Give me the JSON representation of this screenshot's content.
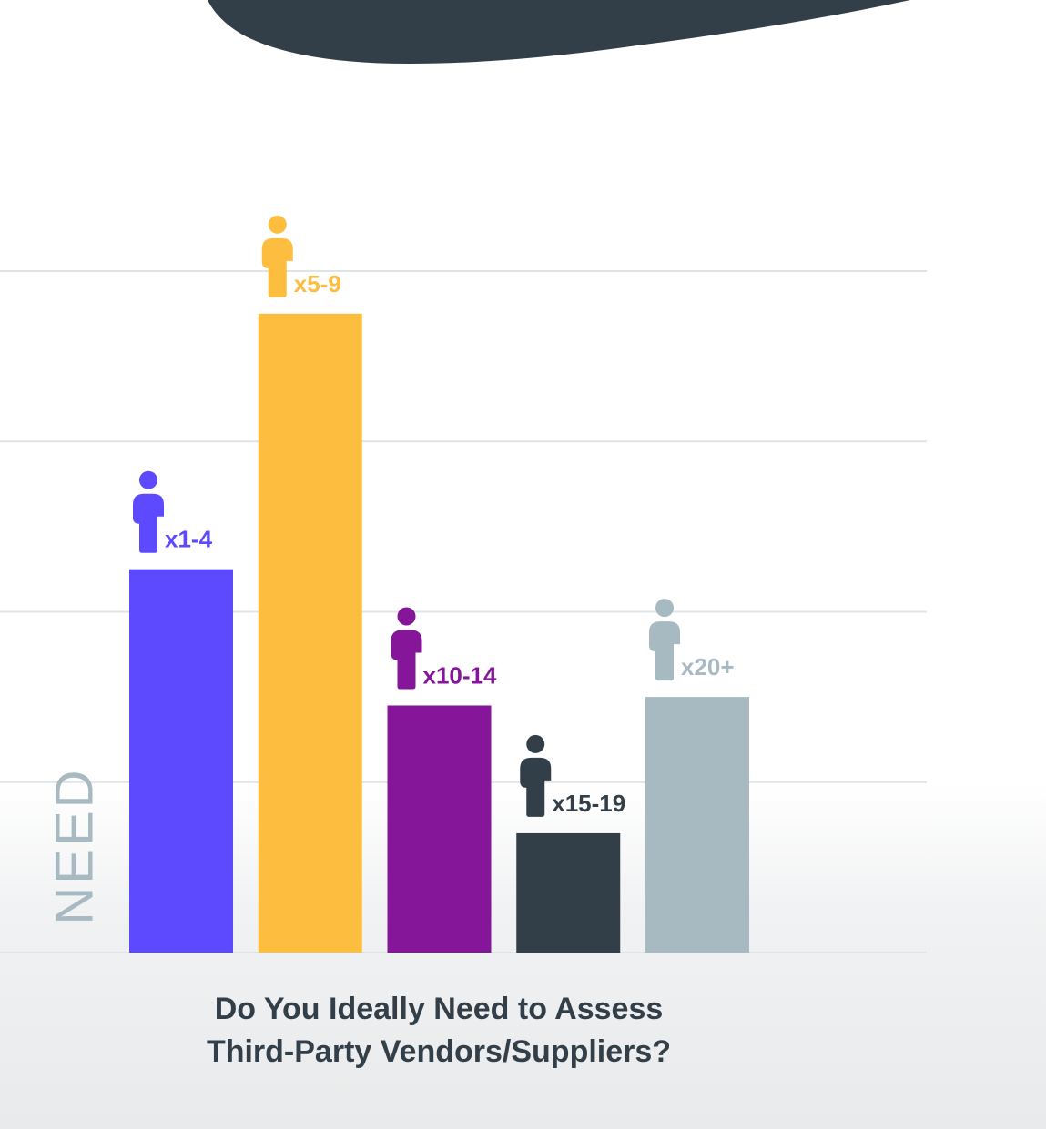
{
  "chart_data": {
    "type": "bar",
    "title": "Do You Ideally Need to Assess Third-Party Vendors/Suppliers?",
    "title_lines": [
      "Do You Ideally Need to Assess",
      "Third-Party Vendors/Suppliers?"
    ],
    "ylabel": "NEED",
    "categories": [
      "x1-4",
      "x5-9",
      "x10-14",
      "x15-19",
      "x20+"
    ],
    "values": [
      45,
      75,
      29,
      14,
      30
    ],
    "ylim": [
      0,
      80
    ],
    "gridlines": [
      0,
      20,
      40,
      60,
      80
    ],
    "grid": true,
    "legend": "none",
    "colors": [
      "#5e4afe",
      "#fdbd3f",
      "#85169a",
      "#333f48",
      "#a7bac2"
    ]
  },
  "decor": {
    "blob_color": "#333f48",
    "grid_color": "#dfe4e6",
    "icon": "person-icon"
  }
}
